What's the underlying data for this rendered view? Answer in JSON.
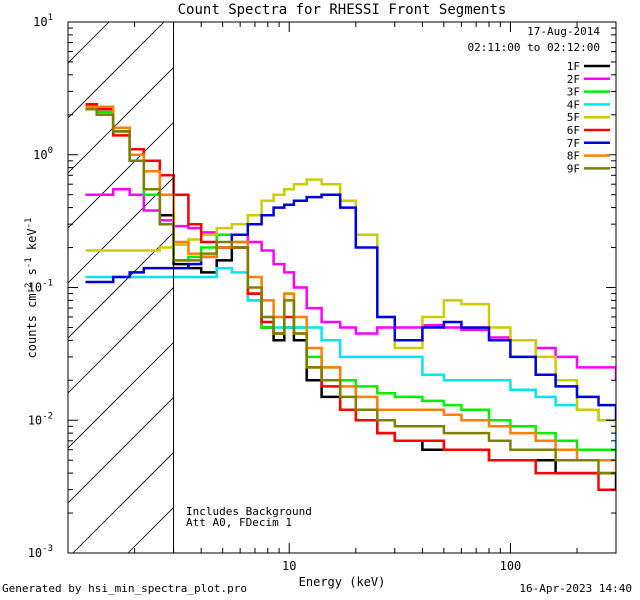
{
  "chart_data": {
    "type": "line",
    "title": "Count Spectra for RHESSI Front Segments",
    "xlabel": "Energy (keV)",
    "ylabel": {
      "base": "counts cm",
      "exp1": "-2",
      "mid": " s",
      "exp2": "-1",
      "mid2": " keV",
      "exp3": "-1"
    },
    "x_scale": "log",
    "y_scale": "log",
    "xlim": [
      1,
      300
    ],
    "ylim": [
      0.001,
      10
    ],
    "x_ticks": [
      {
        "value": 10,
        "label": "10"
      },
      {
        "value": 100,
        "label": "100"
      }
    ],
    "y_ticks": [
      {
        "value": 0.001,
        "base": "10",
        "exp": "-3"
      },
      {
        "value": 0.01,
        "base": "10",
        "exp": "-2"
      },
      {
        "value": 0.1,
        "base": "10",
        "exp": "-1"
      },
      {
        "value": 1,
        "base": "10",
        "exp": "0"
      },
      {
        "value": 10,
        "base": "10",
        "exp": "1"
      }
    ],
    "hatched_region_kev": [
      1,
      3
    ],
    "date": "17-Aug-2014",
    "time_range": "02:11:00 to 02:12:00",
    "annotations": [
      "Includes Background",
      "Att A0, FDecim 1"
    ],
    "series": [
      {
        "name": "1F",
        "color": "#000000",
        "x": [
          1.2,
          1.35,
          1.6,
          1.9,
          2.2,
          2.6,
          3.0,
          3.5,
          4.0,
          4.7,
          5.5,
          6.5,
          7.5,
          8.5,
          9.5,
          10.5,
          12,
          14,
          17,
          20,
          25,
          30,
          40,
          50,
          60,
          80,
          100,
          130,
          160,
          200,
          250,
          300
        ],
        "y": [
          2.2,
          2.0,
          1.5,
          0.9,
          0.55,
          0.35,
          0.15,
          0.14,
          0.13,
          0.16,
          0.2,
          0.09,
          0.05,
          0.04,
          0.05,
          0.04,
          0.02,
          0.015,
          0.012,
          0.01,
          0.008,
          0.007,
          0.006,
          0.006,
          0.006,
          0.005,
          0.005,
          0.005,
          0.004,
          0.004,
          0.004,
          0.003
        ]
      },
      {
        "name": "2F",
        "color": "#ff00ff",
        "x": [
          1.2,
          1.35,
          1.6,
          1.9,
          2.2,
          2.6,
          3.0,
          3.5,
          4.0,
          4.7,
          5.5,
          6.5,
          7.5,
          8.5,
          9.5,
          10.5,
          12,
          14,
          17,
          20,
          25,
          30,
          40,
          50,
          60,
          80,
          100,
          130,
          160,
          200,
          250,
          300
        ],
        "y": [
          0.5,
          0.5,
          0.55,
          0.5,
          0.38,
          0.32,
          0.29,
          0.28,
          0.26,
          0.25,
          0.25,
          0.22,
          0.19,
          0.15,
          0.13,
          0.1,
          0.07,
          0.055,
          0.05,
          0.045,
          0.05,
          0.05,
          0.052,
          0.05,
          0.048,
          0.042,
          0.04,
          0.035,
          0.03,
          0.025,
          0.025,
          0.02
        ]
      },
      {
        "name": "3F",
        "color": "#00ee00",
        "x": [
          1.2,
          1.35,
          1.6,
          1.9,
          2.2,
          2.6,
          3.0,
          3.5,
          4.0,
          4.7,
          5.5,
          6.5,
          7.5,
          8.5,
          9.5,
          10.5,
          12,
          14,
          17,
          20,
          25,
          30,
          40,
          50,
          60,
          80,
          100,
          130,
          160,
          200,
          250,
          300
        ],
        "y": [
          2.3,
          2.1,
          1.6,
          1.0,
          0.5,
          0.3,
          0.16,
          0.17,
          0.2,
          0.25,
          0.22,
          0.08,
          0.05,
          0.045,
          0.09,
          0.05,
          0.03,
          0.025,
          0.02,
          0.018,
          0.016,
          0.015,
          0.014,
          0.013,
          0.012,
          0.01,
          0.009,
          0.008,
          0.007,
          0.006,
          0.006,
          0.005
        ]
      },
      {
        "name": "4F",
        "color": "#00e5ee",
        "x": [
          1.2,
          1.35,
          1.6,
          1.9,
          2.2,
          2.6,
          3.0,
          3.5,
          4.0,
          4.7,
          5.5,
          6.5,
          7.5,
          8.5,
          9.5,
          10.5,
          12,
          14,
          17,
          20,
          25,
          30,
          40,
          50,
          60,
          80,
          100,
          130,
          160,
          200,
          250,
          300
        ],
        "y": [
          0.12,
          0.12,
          0.12,
          0.12,
          0.12,
          0.12,
          0.12,
          0.12,
          0.12,
          0.14,
          0.13,
          0.08,
          0.06,
          0.05,
          0.05,
          0.05,
          0.05,
          0.04,
          0.03,
          0.03,
          0.03,
          0.03,
          0.022,
          0.02,
          0.02,
          0.02,
          0.017,
          0.015,
          0.013,
          0.012,
          0.01,
          0.006
        ]
      },
      {
        "name": "5F",
        "color": "#cccc00",
        "x": [
          1.2,
          1.35,
          1.6,
          1.9,
          2.2,
          2.6,
          3.0,
          3.5,
          4.0,
          4.7,
          5.5,
          6.5,
          7.5,
          8.5,
          9.5,
          10.5,
          12,
          14,
          17,
          20,
          25,
          30,
          40,
          50,
          60,
          80,
          100,
          130,
          160,
          200,
          250,
          300
        ],
        "y": [
          0.19,
          0.19,
          0.19,
          0.19,
          0.19,
          0.2,
          0.21,
          0.23,
          0.25,
          0.28,
          0.3,
          0.35,
          0.45,
          0.5,
          0.55,
          0.6,
          0.65,
          0.6,
          0.45,
          0.25,
          0.06,
          0.035,
          0.06,
          0.08,
          0.075,
          0.05,
          0.04,
          0.03,
          0.02,
          0.012,
          0.01,
          0.008
        ]
      },
      {
        "name": "6F",
        "color": "#ff0000",
        "x": [
          1.2,
          1.35,
          1.6,
          1.9,
          2.2,
          2.6,
          3.0,
          3.5,
          4.0,
          4.7,
          5.5,
          6.5,
          7.5,
          8.5,
          9.5,
          10.5,
          12,
          14,
          17,
          20,
          25,
          30,
          40,
          50,
          60,
          80,
          100,
          130,
          160,
          200,
          250,
          300
        ],
        "y": [
          2.4,
          2.2,
          1.4,
          1.1,
          0.9,
          0.7,
          0.5,
          0.3,
          0.22,
          0.2,
          0.2,
          0.09,
          0.055,
          0.045,
          0.06,
          0.045,
          0.025,
          0.018,
          0.012,
          0.01,
          0.008,
          0.007,
          0.007,
          0.006,
          0.006,
          0.005,
          0.005,
          0.004,
          0.004,
          0.004,
          0.003,
          0.003
        ]
      },
      {
        "name": "7F",
        "color": "#0000dd",
        "x": [
          1.2,
          1.35,
          1.6,
          1.9,
          2.2,
          2.6,
          3.0,
          3.5,
          4.0,
          4.7,
          5.5,
          6.5,
          7.5,
          8.5,
          9.5,
          10.5,
          12,
          14,
          17,
          20,
          25,
          30,
          40,
          50,
          60,
          80,
          100,
          130,
          160,
          200,
          250,
          300
        ],
        "y": [
          0.11,
          0.11,
          0.12,
          0.13,
          0.14,
          0.14,
          0.14,
          0.15,
          0.17,
          0.2,
          0.25,
          0.3,
          0.35,
          0.4,
          0.42,
          0.45,
          0.48,
          0.5,
          0.4,
          0.2,
          0.06,
          0.04,
          0.05,
          0.055,
          0.05,
          0.04,
          0.03,
          0.022,
          0.018,
          0.015,
          0.013,
          0.01
        ]
      },
      {
        "name": "8F",
        "color": "#ff7f00",
        "x": [
          1.2,
          1.35,
          1.6,
          1.9,
          2.2,
          2.6,
          3.0,
          3.5,
          4.0,
          4.7,
          5.5,
          6.5,
          7.5,
          8.5,
          9.5,
          10.5,
          12,
          14,
          17,
          20,
          25,
          30,
          40,
          50,
          60,
          80,
          100,
          130,
          160,
          200,
          250,
          300
        ],
        "y": [
          2.3,
          2.3,
          1.6,
          1.0,
          0.75,
          0.5,
          0.22,
          0.18,
          0.17,
          0.2,
          0.22,
          0.12,
          0.08,
          0.06,
          0.09,
          0.06,
          0.035,
          0.025,
          0.018,
          0.015,
          0.012,
          0.012,
          0.012,
          0.011,
          0.01,
          0.009,
          0.008,
          0.007,
          0.006,
          0.005,
          0.005,
          0.004
        ]
      },
      {
        "name": "9F",
        "color": "#808000",
        "x": [
          1.2,
          1.35,
          1.6,
          1.9,
          2.2,
          2.6,
          3.0,
          3.5,
          4.0,
          4.7,
          5.5,
          6.5,
          7.5,
          8.5,
          9.5,
          10.5,
          12,
          14,
          17,
          20,
          25,
          30,
          40,
          50,
          60,
          80,
          100,
          130,
          160,
          200,
          250,
          300
        ],
        "y": [
          2.2,
          2.0,
          1.5,
          0.9,
          0.55,
          0.3,
          0.16,
          0.16,
          0.18,
          0.22,
          0.2,
          0.1,
          0.06,
          0.045,
          0.08,
          0.045,
          0.025,
          0.02,
          0.015,
          0.012,
          0.01,
          0.009,
          0.009,
          0.008,
          0.008,
          0.007,
          0.006,
          0.006,
          0.005,
          0.005,
          0.004,
          0.004
        ]
      }
    ]
  },
  "footer": {
    "left": "Generated by hsi_min_spectra_plot.pro",
    "right": "16-Apr-2023 14:40"
  }
}
